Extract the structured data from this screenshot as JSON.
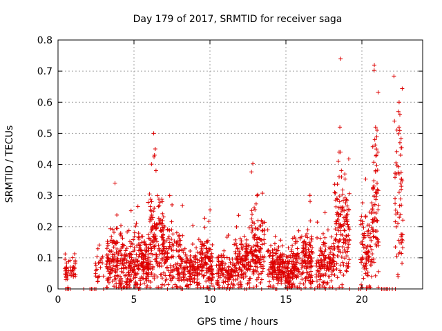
{
  "chart_data": {
    "type": "scatter",
    "title": "Day 179 of 2017, SRMTID for receiver saga",
    "xlabel": "GPS time / hours",
    "ylabel": "SRMTID / TECUs",
    "xlim": [
      0,
      24
    ],
    "ylim": [
      0,
      0.8
    ],
    "xticks": [
      0,
      5,
      10,
      15,
      20
    ],
    "xtick_labels": [
      "0",
      "5",
      "10",
      "15",
      "20"
    ],
    "yticks": [
      0,
      0.1,
      0.2,
      0.3,
      0.4,
      0.5,
      0.6,
      0.7,
      0.8
    ],
    "ytick_labels": [
      "0",
      "0.1",
      "0.2",
      "0.3",
      "0.4",
      "0.5",
      "0.6",
      "0.7",
      "0.8"
    ],
    "grid": true,
    "legend": "none",
    "marker": "+",
    "color": "#dd0000",
    "clusters": [
      {
        "x0": 0.45,
        "x1": 1.15,
        "ymed": 0.06,
        "yspread": 0.025,
        "n": 45
      },
      {
        "x0": 2.4,
        "x1": 3.0,
        "ymed": 0.07,
        "yspread": 0.03,
        "n": 22
      },
      {
        "x0": 3.2,
        "x1": 4.3,
        "ymed": 0.08,
        "yspread": 0.05,
        "n": 140
      },
      {
        "x0": 4.3,
        "x1": 5.3,
        "ymed": 0.065,
        "yspread": 0.04,
        "n": 120
      },
      {
        "x0": 5.3,
        "x1": 6.0,
        "ymed": 0.09,
        "yspread": 0.04,
        "n": 110
      },
      {
        "x0": 6.0,
        "x1": 7.0,
        "ymed": 0.14,
        "yspread": 0.07,
        "n": 150
      },
      {
        "x0": 7.0,
        "x1": 8.2,
        "ymed": 0.09,
        "yspread": 0.05,
        "n": 120
      },
      {
        "x0": 8.2,
        "x1": 9.4,
        "ymed": 0.065,
        "yspread": 0.03,
        "n": 120
      },
      {
        "x0": 9.4,
        "x1": 10.2,
        "ymed": 0.08,
        "yspread": 0.04,
        "n": 110
      },
      {
        "x0": 10.4,
        "x1": 11.6,
        "ymed": 0.055,
        "yspread": 0.03,
        "n": 110
      },
      {
        "x0": 11.6,
        "x1": 12.6,
        "ymed": 0.09,
        "yspread": 0.04,
        "n": 120
      },
      {
        "x0": 12.6,
        "x1": 13.6,
        "ymed": 0.13,
        "yspread": 0.06,
        "n": 130
      },
      {
        "x0": 13.8,
        "x1": 14.8,
        "ymed": 0.07,
        "yspread": 0.035,
        "n": 130
      },
      {
        "x0": 14.8,
        "x1": 15.6,
        "ymed": 0.06,
        "yspread": 0.03,
        "n": 120
      },
      {
        "x0": 15.6,
        "x1": 16.8,
        "ymed": 0.09,
        "yspread": 0.045,
        "n": 150
      },
      {
        "x0": 17.0,
        "x1": 18.2,
        "ymed": 0.08,
        "yspread": 0.04,
        "n": 130
      },
      {
        "x0": 18.2,
        "x1": 19.2,
        "ymed": 0.19,
        "yspread": 0.08,
        "n": 140
      },
      {
        "x0": 19.9,
        "x1": 20.7,
        "ymed": 0.12,
        "yspread": 0.07,
        "n": 90
      },
      {
        "x0": 20.7,
        "x1": 21.1,
        "ymed": 0.25,
        "yspread": 0.1,
        "n": 60
      },
      {
        "x0": 22.1,
        "x1": 22.7,
        "ymed": 0.24,
        "yspread": 0.12,
        "n": 55
      }
    ],
    "points": [
      [
        3.75,
        0.34
      ],
      [
        6.35,
        0.43
      ],
      [
        6.4,
        0.45
      ],
      [
        6.3,
        0.5
      ],
      [
        6.45,
        0.38
      ],
      [
        6.55,
        0.3
      ],
      [
        7.35,
        0.3
      ],
      [
        13.1,
        0.3
      ],
      [
        18.6,
        0.74
      ],
      [
        18.55,
        0.52
      ],
      [
        18.5,
        0.44
      ],
      [
        18.6,
        0.44
      ],
      [
        18.45,
        0.41
      ],
      [
        18.65,
        0.38
      ],
      [
        18.5,
        0.36
      ],
      [
        20.9,
        0.52
      ],
      [
        21.0,
        0.51
      ],
      [
        20.85,
        0.48
      ],
      [
        21.05,
        0.44
      ],
      [
        20.95,
        0.43
      ],
      [
        20.9,
        0.38
      ],
      [
        21.0,
        0.34
      ],
      [
        22.45,
        0.6
      ],
      [
        22.4,
        0.57
      ],
      [
        22.5,
        0.56
      ],
      [
        22.45,
        0.52
      ],
      [
        22.5,
        0.47
      ],
      [
        22.55,
        0.43
      ],
      [
        22.45,
        0.37
      ],
      [
        22.55,
        0.34
      ],
      [
        22.6,
        0.33
      ],
      [
        0.5,
        0.0
      ],
      [
        0.6,
        0.0
      ],
      [
        0.7,
        0.0
      ],
      [
        0.8,
        0.0
      ],
      [
        1.7,
        0.0
      ],
      [
        2.1,
        0.0
      ],
      [
        2.2,
        0.0
      ],
      [
        2.3,
        0.0
      ],
      [
        2.4,
        0.0
      ],
      [
        2.5,
        0.0
      ],
      [
        3.0,
        0.0
      ],
      [
        4.2,
        0.0
      ],
      [
        5.3,
        0.0
      ],
      [
        5.4,
        0.0
      ],
      [
        7.2,
        0.0
      ],
      [
        8.1,
        0.0
      ],
      [
        8.2,
        0.0
      ],
      [
        9.9,
        0.0
      ],
      [
        10.0,
        0.0
      ],
      [
        10.3,
        0.0
      ],
      [
        11.1,
        0.0
      ],
      [
        11.3,
        0.0
      ],
      [
        12.3,
        0.0
      ],
      [
        12.4,
        0.0
      ],
      [
        13.4,
        0.0
      ],
      [
        14.3,
        0.0
      ],
      [
        14.4,
        0.0
      ],
      [
        15.1,
        0.0
      ],
      [
        16.0,
        0.0
      ],
      [
        16.9,
        0.0
      ],
      [
        17.6,
        0.0
      ],
      [
        18.3,
        0.0
      ],
      [
        19.2,
        0.0
      ],
      [
        19.8,
        0.0
      ],
      [
        19.9,
        0.0
      ],
      [
        20.3,
        0.0
      ],
      [
        21.3,
        0.0
      ],
      [
        21.4,
        0.0
      ],
      [
        21.5,
        0.0
      ],
      [
        21.6,
        0.0
      ],
      [
        21.7,
        0.0
      ],
      [
        21.8,
        0.0
      ],
      [
        22.0,
        0.0
      ],
      [
        22.2,
        0.0
      ]
    ]
  }
}
